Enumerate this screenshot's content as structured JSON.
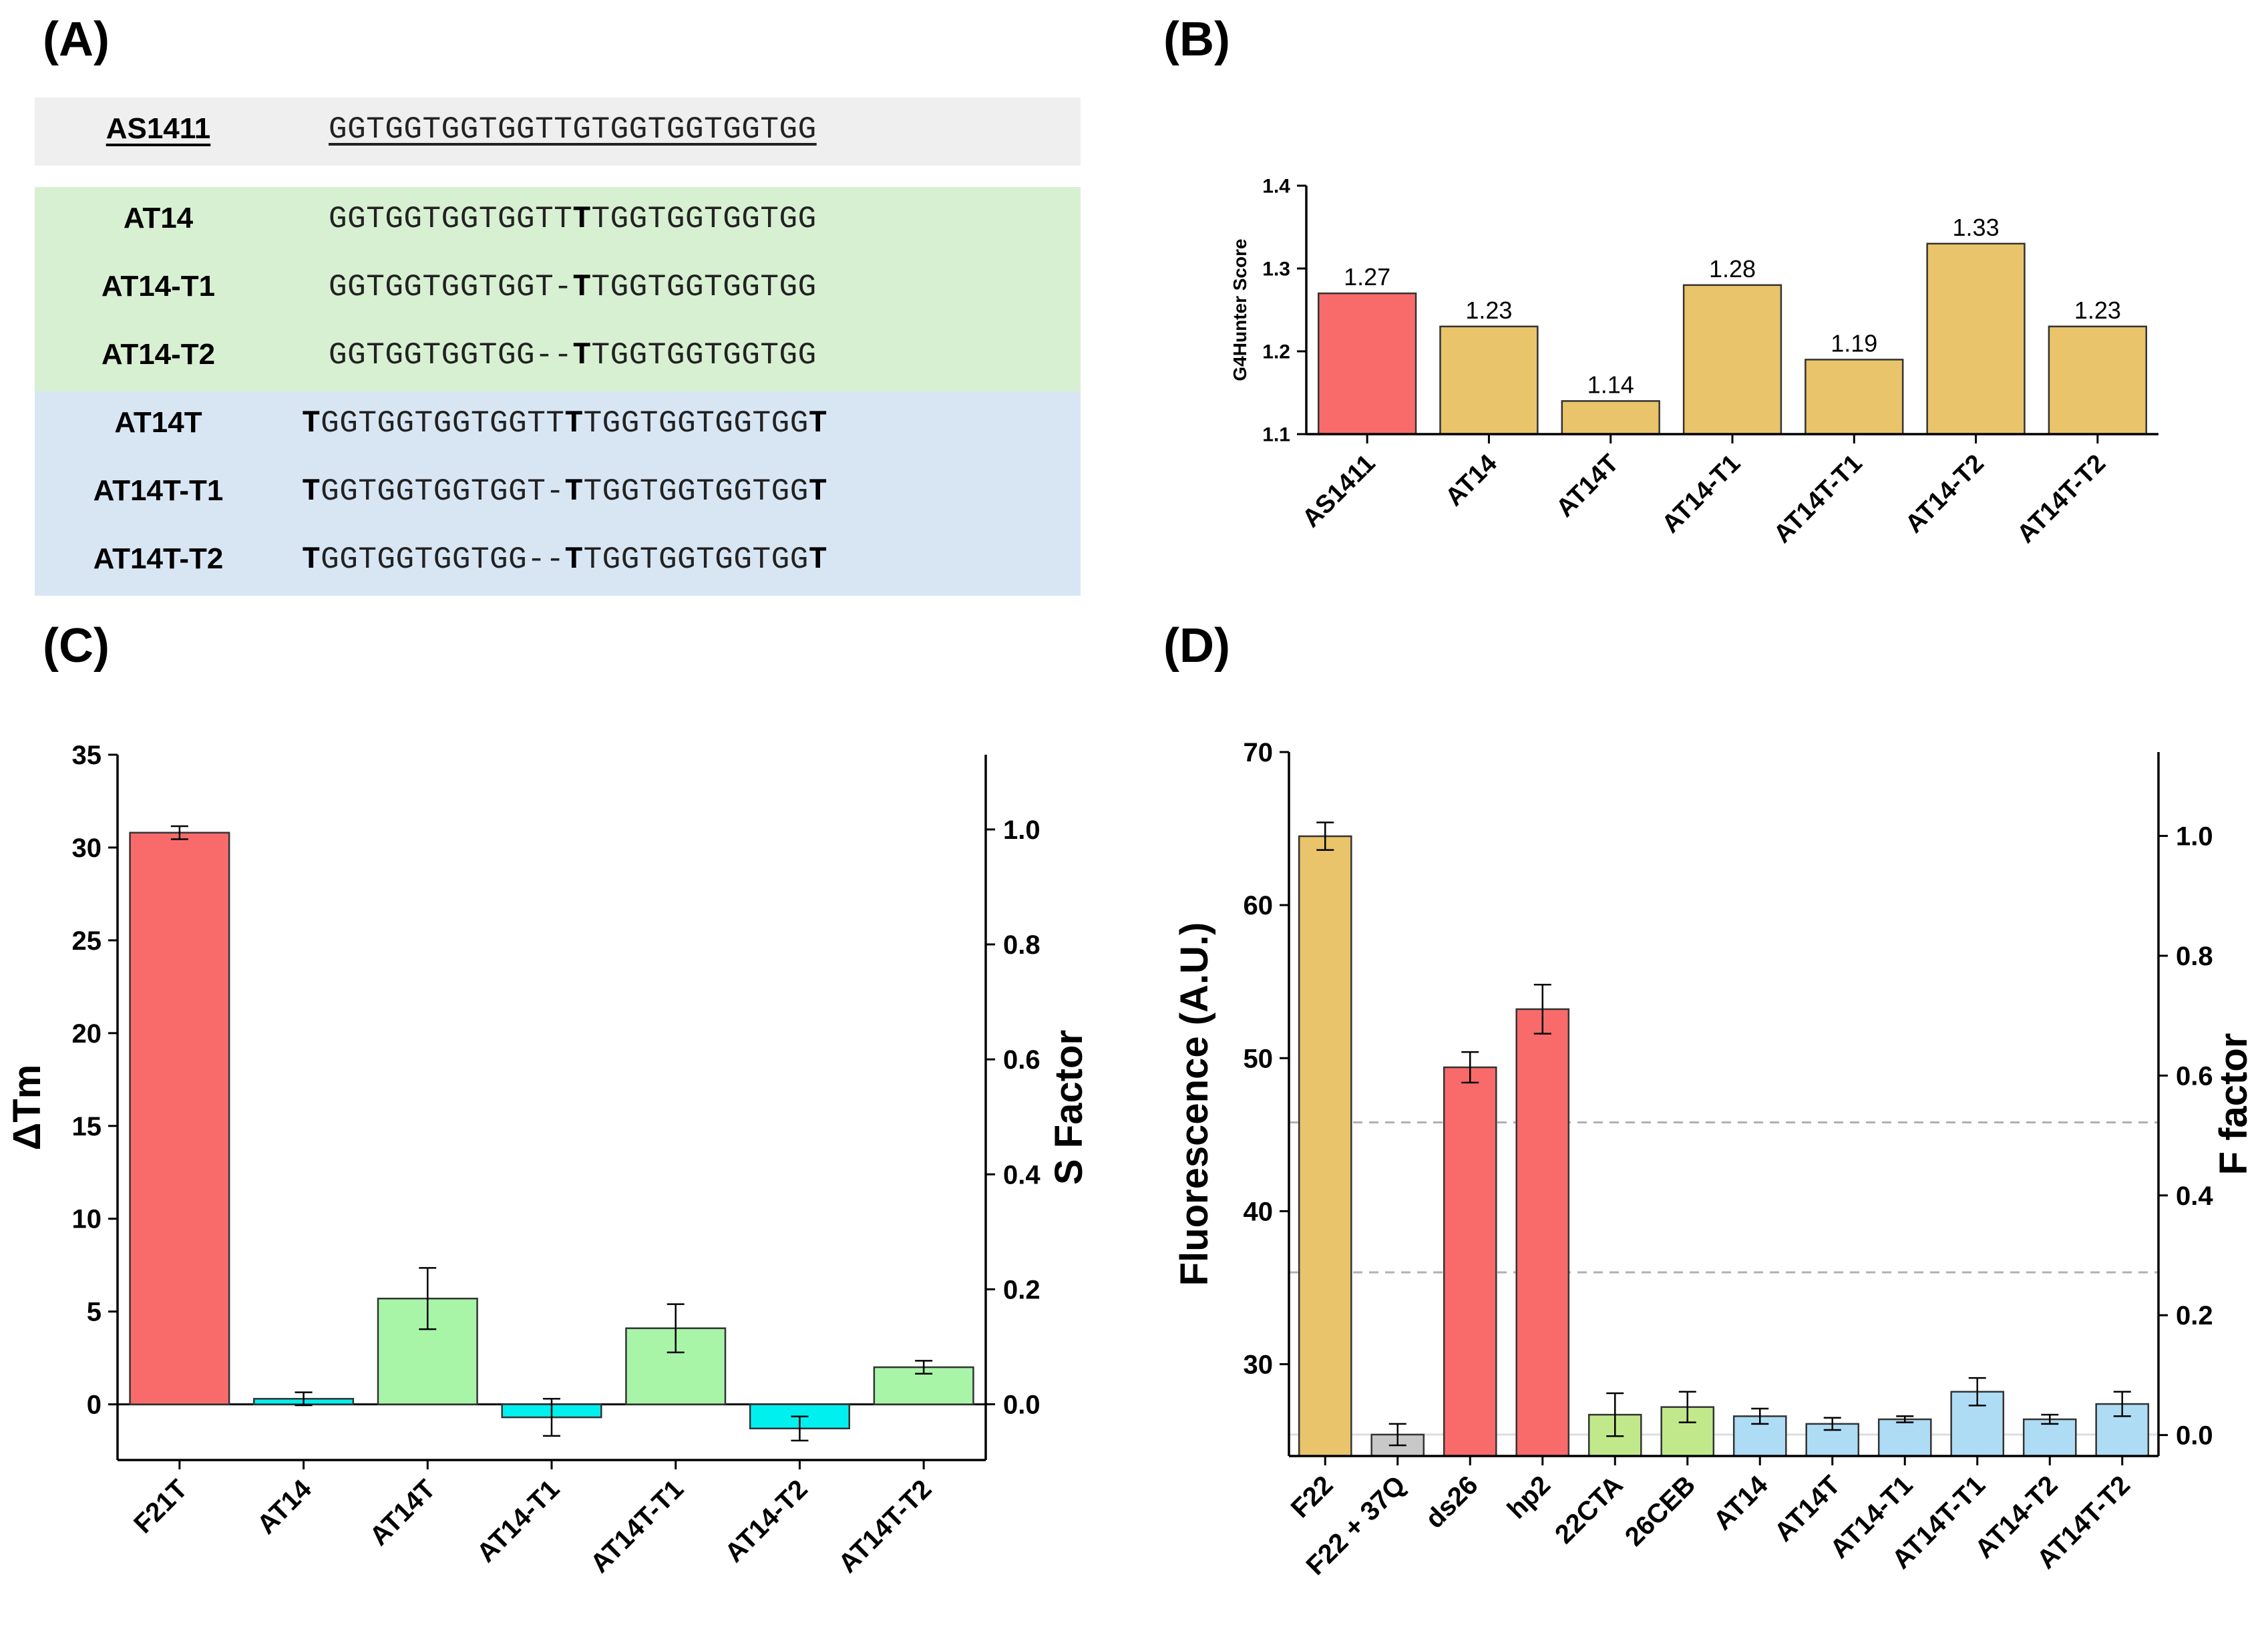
{
  "panels": {
    "a": "(A)",
    "b": "(B)",
    "c": "(C)",
    "d": "(D)"
  },
  "sequences": {
    "reference": {
      "name": "AS1411",
      "seq": "GGTGGTGGTGGTTGTGGTGGTGGTGG"
    },
    "green": [
      {
        "name": "AT14",
        "pre": "GGTGGTGGTGGTT",
        "bold": "T",
        "post": "TGGTGGTGGTGG"
      },
      {
        "name": "AT14-T1",
        "pre": "GGTGGTGGTGGT-",
        "bold": "T",
        "post": "TGGTGGTGGTGG"
      },
      {
        "name": "AT14-T2",
        "pre": "GGTGGTGGTGG--",
        "bold": "T",
        "post": "TGGTGGTGGTGG"
      }
    ],
    "blue": [
      {
        "name": "AT14T",
        "start": "T",
        "pre": "GGTGGTGGTGGTT",
        "bold": "T",
        "post": "TGGTGGTGGTGG",
        "end": "T"
      },
      {
        "name": "AT14T-T1",
        "start": "T",
        "pre": "GGTGGTGGTGGT-",
        "bold": "T",
        "post": "TGGTGGTGGTGG",
        "end": "T"
      },
      {
        "name": "AT14T-T2",
        "start": "T",
        "pre": "GGTGGTGGTGG--",
        "bold": "T",
        "post": "TGGTGGTGGTGG",
        "end": "T"
      }
    ]
  },
  "colors": {
    "red": "#f96b6b",
    "gold": "#e9c46a",
    "green": "#a8f5a8",
    "cyan": "#00f0f0",
    "lightblue": "#aedcf5",
    "lightgreen": "#c2e88c",
    "gray": "#c8c8c8"
  },
  "chart_data": [
    {
      "id": "B",
      "type": "bar",
      "ylabel": "G4Hunter Score",
      "ylim": [
        1.1,
        1.4
      ],
      "yticks": [
        "1.1",
        "1.2",
        "1.3",
        "1.4"
      ],
      "categories": [
        "AS1411",
        "AT14",
        "AT14T",
        "AT14-T1",
        "AT14T-T1",
        "AT14-T2",
        "AT14T-T2"
      ],
      "values": [
        1.27,
        1.23,
        1.14,
        1.28,
        1.19,
        1.33,
        1.23
      ],
      "labels": [
        "1.27",
        "1.23",
        "1.14",
        "1.28",
        "1.19",
        "1.33",
        "1.23"
      ],
      "bar_colors": [
        "red",
        "gold",
        "gold",
        "gold",
        "gold",
        "gold",
        "gold"
      ]
    },
    {
      "id": "C",
      "type": "bar",
      "ylabel": "ΔTm",
      "y2label": "S Factor",
      "ylim": [
        -3,
        35
      ],
      "yticks": [
        "0",
        "5",
        "10",
        "15",
        "20",
        "25",
        "30",
        "35"
      ],
      "y2lim": [
        -0.097,
        1.13
      ],
      "y2ticks": [
        "0.0",
        "0.2",
        "0.4",
        "0.6",
        "0.8",
        "1.0"
      ],
      "categories": [
        "F21T",
        "AT14",
        "AT14T",
        "AT14-T1",
        "AT14T-T1",
        "AT14-T2",
        "AT14T-T2"
      ],
      "values": [
        30.8,
        0.3,
        5.7,
        -0.7,
        4.1,
        -1.3,
        2.0
      ],
      "errors": [
        0.35,
        0.35,
        1.65,
        1.0,
        1.3,
        0.65,
        0.35
      ],
      "bar_colors": [
        "red",
        "cyan",
        "green",
        "cyan",
        "green",
        "cyan",
        "green"
      ]
    },
    {
      "id": "D",
      "type": "bar",
      "ylabel": "Fluorescence (A.U.)",
      "y2label": "F factor",
      "ylim": [
        24.0,
        70
      ],
      "yticks": [
        "30",
        "40",
        "50",
        "60",
        "70"
      ],
      "y2lim": [
        -0.035,
        1.14
      ],
      "y2ticks": [
        "0.0",
        "0.2",
        "0.4",
        "0.6",
        "0.8",
        "1.0"
      ],
      "reference_lines": [
        45.8,
        36.0,
        25.4
      ],
      "categories": [
        "F22",
        "F22 + 37Q",
        "ds26",
        "hp2",
        "22CTA",
        "26CEB",
        "AT14",
        "AT14T",
        "AT14-T1",
        "AT14T-T1",
        "AT14-T2",
        "AT14T-T2"
      ],
      "values": [
        64.5,
        25.4,
        49.4,
        53.2,
        26.7,
        27.2,
        26.6,
        26.1,
        26.4,
        28.2,
        26.4,
        27.4
      ],
      "errors": [
        0.9,
        0.7,
        1.0,
        1.6,
        1.4,
        1.0,
        0.5,
        0.4,
        0.2,
        0.9,
        0.3,
        0.8
      ],
      "bar_colors": [
        "gold",
        "gray",
        "red",
        "red",
        "lightgreen",
        "lightgreen",
        "lightblue",
        "lightblue",
        "lightblue",
        "lightblue",
        "lightblue",
        "lightblue"
      ]
    }
  ]
}
